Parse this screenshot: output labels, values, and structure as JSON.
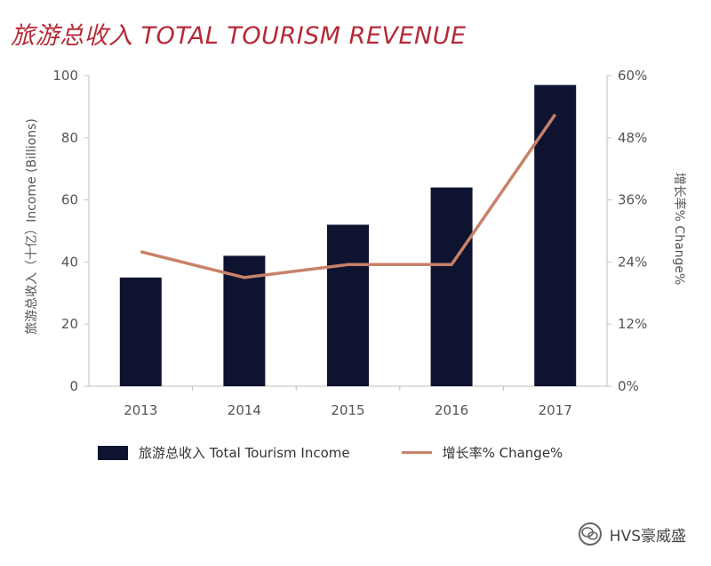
{
  "colors": {
    "title": "#b52a38",
    "bar": "#0e1330",
    "line": "#c7826a"
  },
  "chart_data": {
    "type": "bar",
    "title": "旅游总收入 TOTAL TOURISM REVENUE",
    "categories": [
      "2013",
      "2014",
      "2015",
      "2016",
      "2017"
    ],
    "series": [
      {
        "name": "旅游总收入 Total Tourism Income",
        "type": "bar",
        "axis": "left",
        "values": [
          35,
          42,
          52,
          64,
          97
        ]
      },
      {
        "name": "增长率% Change%",
        "type": "line",
        "axis": "right",
        "values": [
          26,
          21,
          23.5,
          23.5,
          52.5
        ]
      }
    ],
    "ylabel": "旅游总收入（十亿）Income (Billions)",
    "y2label": "增长率% Change%",
    "ylim": [
      0,
      100
    ],
    "y2lim": [
      0,
      60
    ],
    "yticks": [
      "0",
      "20",
      "40",
      "60",
      "80",
      "100"
    ],
    "y2ticks": [
      "0%",
      "12%",
      "24%",
      "36%",
      "48%",
      "60%"
    ],
    "grid": false,
    "legend": "bottom"
  },
  "watermark": "HVS豪威盛"
}
